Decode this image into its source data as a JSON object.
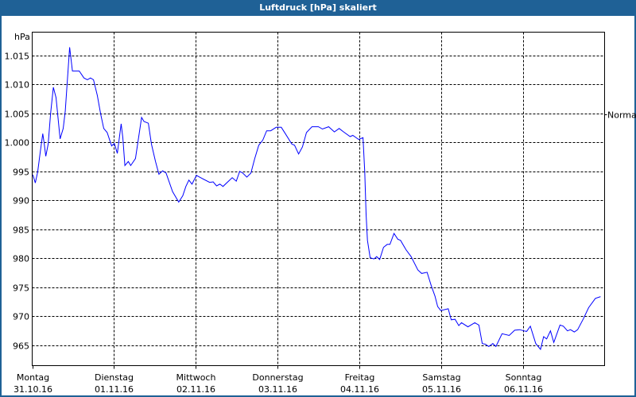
{
  "window": {
    "title": "Luftdruck [hPa] skaliert",
    "title_bar_color": "#1f6196"
  },
  "chart_data": {
    "type": "line",
    "title": "Luftdruck [hPa] skaliert",
    "ylabel": "hPa",
    "xlabel": "",
    "x_unit": "hours since Montag 31.10.16 00:00",
    "xlim": [
      0,
      168
    ],
    "ylim": [
      961.5,
      1019
    ],
    "grid": true,
    "line_color": "#0000ff",
    "yticks": [
      965,
      970,
      975,
      980,
      985,
      990,
      995,
      1000,
      1005,
      1010,
      1015
    ],
    "ytick_labels": [
      "965",
      "970",
      "975",
      "980",
      "985",
      "990",
      "995",
      "1.000",
      "1.005",
      "1.010",
      "1.015"
    ],
    "xticks": [
      {
        "day": "Montag",
        "date": "31.10.16",
        "hour": 0
      },
      {
        "day": "Dienstag",
        "date": "01.11.16",
        "hour": 24
      },
      {
        "day": "Mittwoch",
        "date": "02.11.16",
        "hour": 48
      },
      {
        "day": "Donnerstag",
        "date": "03.11.16",
        "hour": 72
      },
      {
        "day": "Freitag",
        "date": "04.11.16",
        "hour": 96
      },
      {
        "day": "Samstag",
        "date": "05.11.16",
        "hour": 120
      },
      {
        "day": "Sonntag",
        "date": "06.11.16",
        "hour": 144
      }
    ],
    "reference": {
      "label": "Normal",
      "value": 1004.8
    },
    "points": [
      [
        0.2,
        994.4
      ],
      [
        0.9,
        993.0
      ],
      [
        1.6,
        994.9
      ],
      [
        2.3,
        998.1
      ],
      [
        3.1,
        1001.5
      ],
      [
        3.5,
        999.9
      ],
      [
        4.0,
        997.6
      ],
      [
        4.7,
        999.7
      ],
      [
        5.4,
        1004.9
      ],
      [
        6.2,
        1009.5
      ],
      [
        7.0,
        1007.7
      ],
      [
        8.2,
        1000.6
      ],
      [
        9.1,
        1002.4
      ],
      [
        9.7,
        1005.4
      ],
      [
        11.0,
        1016.4
      ],
      [
        11.8,
        1012.3
      ],
      [
        13.8,
        1012.3
      ],
      [
        15.2,
        1011.1
      ],
      [
        16.2,
        1010.8
      ],
      [
        17.1,
        1011.1
      ],
      [
        18.0,
        1010.8
      ],
      [
        19.1,
        1008.1
      ],
      [
        20.1,
        1004.9
      ],
      [
        21.0,
        1002.4
      ],
      [
        22.0,
        1001.7
      ],
      [
        23.3,
        999.4
      ],
      [
        24.1,
        999.8
      ],
      [
        25.0,
        998.1
      ],
      [
        26.1,
        1003.2
      ],
      [
        26.6,
        1000.8
      ],
      [
        27.2,
        996.0
      ],
      [
        28.2,
        996.7
      ],
      [
        28.9,
        996.0
      ],
      [
        30.3,
        997.2
      ],
      [
        32.1,
        1004.3
      ],
      [
        32.8,
        1003.6
      ],
      [
        34.1,
        1003.3
      ],
      [
        35.0,
        999.7
      ],
      [
        36.2,
        996.7
      ],
      [
        37.2,
        994.5
      ],
      [
        38.3,
        995.1
      ],
      [
        39.3,
        994.7
      ],
      [
        41.2,
        991.5
      ],
      [
        43.0,
        989.7
      ],
      [
        44.2,
        990.8
      ],
      [
        45.1,
        992.4
      ],
      [
        46.0,
        993.5
      ],
      [
        46.9,
        992.8
      ],
      [
        48.2,
        994.3
      ],
      [
        49.8,
        993.8
      ],
      [
        52.1,
        993.1
      ],
      [
        53.1,
        993.2
      ],
      [
        54.1,
        992.5
      ],
      [
        55.1,
        992.8
      ],
      [
        56.0,
        992.4
      ],
      [
        58.7,
        993.9
      ],
      [
        59.9,
        993.3
      ],
      [
        60.9,
        995.0
      ],
      [
        61.8,
        994.7
      ],
      [
        63.0,
        994.0
      ],
      [
        64.2,
        994.7
      ],
      [
        65.3,
        997.2
      ],
      [
        66.5,
        999.5
      ],
      [
        67.7,
        1000.4
      ],
      [
        68.8,
        1002.0
      ],
      [
        70.0,
        1002.0
      ],
      [
        71.6,
        1002.6
      ],
      [
        73.1,
        1002.6
      ],
      [
        74.3,
        1001.5
      ],
      [
        76.2,
        999.7
      ],
      [
        77.0,
        999.5
      ],
      [
        78.2,
        998.0
      ],
      [
        79.3,
        999.2
      ],
      [
        80.5,
        1001.7
      ],
      [
        82.1,
        1002.7
      ],
      [
        84.0,
        1002.7
      ],
      [
        85.2,
        1002.3
      ],
      [
        87.0,
        1002.7
      ],
      [
        88.7,
        1001.8
      ],
      [
        90.1,
        1002.4
      ],
      [
        91.4,
        1001.8
      ],
      [
        93.3,
        1001.0
      ],
      [
        94.1,
        1001.2
      ],
      [
        95.8,
        1000.5
      ],
      [
        97.1,
        1000.8
      ],
      [
        97.6,
        994.9
      ],
      [
        98.0,
        987.6
      ],
      [
        98.4,
        983.1
      ],
      [
        99.2,
        980.1
      ],
      [
        100.3,
        979.9
      ],
      [
        101.1,
        980.3
      ],
      [
        102.0,
        979.8
      ],
      [
        103.1,
        981.9
      ],
      [
        104.2,
        982.4
      ],
      [
        105.0,
        982.4
      ],
      [
        106.2,
        984.3
      ],
      [
        107.3,
        983.3
      ],
      [
        108.1,
        983.1
      ],
      [
        109.7,
        981.5
      ],
      [
        111.2,
        980.3
      ],
      [
        113.2,
        978.0
      ],
      [
        114.3,
        977.4
      ],
      [
        115.9,
        977.6
      ],
      [
        117.1,
        975.3
      ],
      [
        118.2,
        973.5
      ],
      [
        119.0,
        971.7
      ],
      [
        119.9,
        971.0
      ],
      [
        122.1,
        971.3
      ],
      [
        123.0,
        969.4
      ],
      [
        124.1,
        969.5
      ],
      [
        125.2,
        968.4
      ],
      [
        126.0,
        968.9
      ],
      [
        127.9,
        968.2
      ],
      [
        129.9,
        968.9
      ],
      [
        131.1,
        968.5
      ],
      [
        132.1,
        965.3
      ],
      [
        133.0,
        965.2
      ],
      [
        134.0,
        964.8
      ],
      [
        135.2,
        965.3
      ],
      [
        136.1,
        964.8
      ],
      [
        137.9,
        967.0
      ],
      [
        140.0,
        966.7
      ],
      [
        141.6,
        967.6
      ],
      [
        143.1,
        967.7
      ],
      [
        144.3,
        967.5
      ],
      [
        145.1,
        967.4
      ],
      [
        146.2,
        968.3
      ],
      [
        147.8,
        965.3
      ],
      [
        149.2,
        964.3
      ],
      [
        150.1,
        966.5
      ],
      [
        151.0,
        966.1
      ],
      [
        152.1,
        967.5
      ],
      [
        153.1,
        965.5
      ],
      [
        154.9,
        968.5
      ],
      [
        155.9,
        968.3
      ],
      [
        157.1,
        967.5
      ],
      [
        158.0,
        967.7
      ],
      [
        159.1,
        967.3
      ],
      [
        160.1,
        967.7
      ],
      [
        161.8,
        969.6
      ],
      [
        163.3,
        971.5
      ],
      [
        165.3,
        973.1
      ],
      [
        166.8,
        973.4
      ]
    ]
  }
}
